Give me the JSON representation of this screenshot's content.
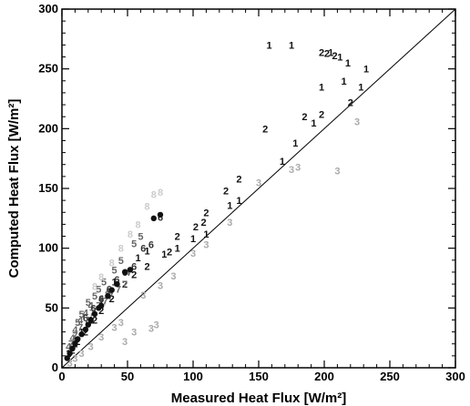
{
  "chart_data": {
    "type": "scatter",
    "title": "",
    "xlabel": "Measured Heat Flux [W/m²]",
    "ylabel": "Computed Heat Flux [W/m²]",
    "xlim": [
      0,
      300
    ],
    "ylim": [
      0,
      300
    ],
    "xticks": [
      0,
      50,
      100,
      150,
      200,
      250,
      300
    ],
    "yticks": [
      0,
      50,
      100,
      150,
      200,
      250,
      300
    ],
    "grid": false,
    "reference_line": {
      "from": [
        0,
        0
      ],
      "to": [
        300,
        300
      ]
    },
    "colors": {
      "dark": "#111111",
      "medium": "#666666",
      "light": "#aaaaaa",
      "faint": "#cccccc"
    },
    "series": [
      {
        "marker": "1",
        "color": "#111111",
        "points": [
          [
            158,
            270
          ],
          [
            175,
            270
          ],
          [
            205,
            264
          ],
          [
            212,
            260
          ],
          [
            218,
            255
          ],
          [
            232,
            250
          ],
          [
            215,
            240
          ],
          [
            198,
            235
          ],
          [
            228,
            235
          ],
          [
            192,
            205
          ],
          [
            178,
            188
          ],
          [
            168,
            173
          ],
          [
            135,
            140
          ],
          [
            128,
            136
          ],
          [
            110,
            112
          ],
          [
            100,
            108
          ],
          [
            88,
            100
          ],
          [
            78,
            95
          ],
          [
            65,
            98
          ],
          [
            58,
            92
          ],
          [
            40,
            72
          ],
          [
            30,
            55
          ],
          [
            22,
            40
          ],
          [
            15,
            30
          ],
          [
            10,
            20
          ],
          [
            5,
            12
          ]
        ]
      },
      {
        "marker": "2",
        "color": "#111111",
        "points": [
          [
            198,
            264
          ],
          [
            202,
            263
          ],
          [
            208,
            261
          ],
          [
            220,
            222
          ],
          [
            185,
            210
          ],
          [
            198,
            212
          ],
          [
            155,
            200
          ],
          [
            135,
            158
          ],
          [
            125,
            148
          ],
          [
            108,
            122
          ],
          [
            102,
            118
          ],
          [
            110,
            130
          ],
          [
            88,
            110
          ],
          [
            82,
            97
          ],
          [
            65,
            85
          ],
          [
            55,
            78
          ],
          [
            48,
            70
          ],
          [
            38,
            58
          ],
          [
            30,
            48
          ],
          [
            25,
            40
          ],
          [
            18,
            30
          ],
          [
            12,
            22
          ],
          [
            8,
            15
          ]
        ]
      },
      {
        "marker": "3",
        "color": "#aaaaaa",
        "points": [
          [
            225,
            206
          ],
          [
            210,
            165
          ],
          [
            180,
            168
          ],
          [
            175,
            166
          ],
          [
            150,
            155
          ],
          [
            128,
            122
          ],
          [
            110,
            103
          ],
          [
            100,
            96
          ],
          [
            85,
            77
          ],
          [
            75,
            69
          ],
          [
            62,
            61
          ],
          [
            45,
            38
          ],
          [
            40,
            34
          ],
          [
            30,
            26
          ],
          [
            22,
            18
          ],
          [
            15,
            12
          ],
          [
            10,
            8
          ],
          [
            6,
            4
          ],
          [
            68,
            33
          ],
          [
            72,
            36
          ],
          [
            55,
            30
          ],
          [
            48,
            22
          ]
        ]
      },
      {
        "marker": "4",
        "color": "#666666",
        "points": [
          [
            50,
            80
          ],
          [
            42,
            70
          ],
          [
            35,
            64
          ],
          [
            30,
            58
          ],
          [
            22,
            52
          ],
          [
            18,
            46
          ],
          [
            14,
            40
          ],
          [
            10,
            32
          ],
          [
            8,
            25
          ],
          [
            5,
            18
          ]
        ]
      },
      {
        "marker": "5",
        "color": "#666666",
        "points": [
          [
            60,
            110
          ],
          [
            55,
            104
          ],
          [
            45,
            90
          ],
          [
            40,
            82
          ],
          [
            32,
            72
          ],
          [
            28,
            66
          ],
          [
            25,
            60
          ],
          [
            20,
            55
          ],
          [
            15,
            45
          ],
          [
            12,
            38
          ]
        ]
      },
      {
        "marker": "6",
        "color": "#333333",
        "points": [
          [
            75,
            126
          ],
          [
            68,
            103
          ],
          [
            62,
            100
          ],
          [
            55,
            85
          ],
          [
            48,
            80
          ],
          [
            42,
            74
          ],
          [
            36,
            66
          ],
          [
            30,
            58
          ],
          [
            24,
            50
          ],
          [
            18,
            42
          ]
        ]
      },
      {
        "marker": "7",
        "color": "#666666",
        "points": [
          [
            48,
            70
          ],
          [
            43,
            66
          ],
          [
            37,
            60
          ],
          [
            33,
            56
          ],
          [
            28,
            52
          ],
          [
            23,
            46
          ],
          [
            19,
            40
          ],
          [
            14,
            34
          ],
          [
            10,
            27
          ],
          [
            7,
            20
          ]
        ]
      },
      {
        "marker": "8",
        "color": "#cccccc",
        "points": [
          [
            75,
            147
          ],
          [
            70,
            145
          ],
          [
            65,
            135
          ],
          [
            58,
            120
          ],
          [
            52,
            112
          ],
          [
            45,
            100
          ],
          [
            38,
            88
          ],
          [
            30,
            76
          ],
          [
            25,
            68
          ]
        ]
      },
      {
        "marker": "dot",
        "color": "#111111",
        "points": [
          [
            75,
            128
          ],
          [
            70,
            125
          ],
          [
            52,
            82
          ],
          [
            48,
            80
          ],
          [
            42,
            70
          ],
          [
            38,
            65
          ],
          [
            35,
            60
          ],
          [
            30,
            52
          ],
          [
            28,
            50
          ],
          [
            25,
            45
          ],
          [
            22,
            40
          ],
          [
            20,
            36
          ],
          [
            18,
            32
          ],
          [
            15,
            28
          ],
          [
            12,
            24
          ],
          [
            10,
            20
          ],
          [
            8,
            16
          ],
          [
            6,
            12
          ],
          [
            4,
            8
          ]
        ]
      }
    ]
  }
}
